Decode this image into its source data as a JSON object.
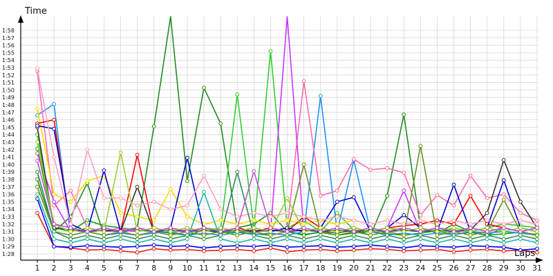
{
  "chart_data": {
    "type": "line",
    "ylabel": "Time",
    "xlabel": "Laps",
    "x": [
      1,
      2,
      3,
      4,
      5,
      6,
      7,
      8,
      9,
      10,
      11,
      12,
      13,
      14,
      15,
      16,
      17,
      18,
      19,
      20,
      21,
      22,
      23,
      24,
      25,
      26,
      27,
      28,
      29,
      30,
      31
    ],
    "y_tick_labels": [
      "1:28",
      "1:29",
      "1:30",
      "1:31",
      "1:32",
      "1:33",
      "1:34",
      "1:35",
      "1:36",
      "1:37",
      "1:38",
      "1:39",
      "1:40",
      "1:41",
      "1:42",
      "1:43",
      "1:44",
      "1:45",
      "1:46",
      "1:47",
      "1:48",
      "1:49",
      "1:50",
      "1:51",
      "1:52",
      "1:53",
      "1:54",
      "1:55",
      "1:56",
      "1:57",
      "1:58"
    ],
    "ylim": [
      "1:27",
      "1:59"
    ],
    "grid": true,
    "legend": "none",
    "series": [
      {
        "color": "#e41a1c",
        "values": [
          "1:33.5",
          "1:29.0",
          "1:28.8",
          "1:28.5",
          "1:28.6",
          "1:28.4",
          "1:28.2",
          "1:28.7",
          "1:28.5",
          "1:28.6",
          "1:28.4",
          "1:28.5",
          "1:28.6",
          "1:28.4",
          "1:28.8",
          "1:28.3",
          "1:28.5",
          "1:28.6",
          "1:28.4",
          "1:28.5",
          "1:28.7",
          "1:28.6",
          "1:28.4",
          "1:28.5",
          "1:28.6",
          "1:28.3",
          "1:28.5",
          "1:28.6",
          "1:28.4",
          "1:28.5",
          "1:28.2"
        ]
      },
      {
        "color": "#0000ff",
        "values": [
          "1:35.4",
          "1:29.0",
          "1:28.9",
          "1:29.1",
          "1:29.0",
          "1:28.9",
          "1:29.0",
          "1:29.2",
          "1:29.0",
          "1:29.1",
          "1:28.8",
          "1:29.0",
          "1:29.1",
          "1:29.0",
          "1:29.2",
          "1:28.9",
          "1:29.0",
          "1:29.1",
          "1:28.9",
          "1:29.0",
          "1:29.2",
          "1:29.0",
          "1:28.8",
          "1:29.1",
          "1:29.0",
          "1:28.9",
          "1:29.1",
          "1:29.0",
          "1:28.9",
          "1:28.5",
          "1:28.7"
        ]
      },
      {
        "color": "#00aa00",
        "values": [
          "1:42.1",
          "1:32.0",
          "1:31.0",
          "1:32.5",
          "1:31.8",
          "1:31.5",
          "1:31.2",
          "1:31.0",
          "1:30.8",
          "1:30.5",
          "1:31.2",
          "1:30.8",
          "1:31.0",
          "1:30.7",
          "1:30.5",
          "1:31.0",
          "1:30.6",
          "1:30.9",
          "1:30.5",
          "1:30.8",
          "1:31.0",
          "1:30.7",
          "1:30.5",
          "1:30.8",
          "1:31.1",
          "1:30.6",
          "1:30.9",
          "1:30.5",
          "1:30.7",
          "1:30.9",
          "1:30.6"
        ]
      },
      {
        "color": "#228b22",
        "values": [
          "1:38.0",
          "1:31.0",
          "1:33.0",
          "1:37.5",
          "1:30.5",
          "1:30.8",
          "1:31.5",
          "1:45.1",
          "2:05.0",
          "1:37.8",
          "1:50.3",
          "1:45.5",
          "1:31.5",
          "1:32.0",
          "1:33.5",
          "1:31.0",
          "1:30.5",
          "1:31.0",
          "1:30.8",
          "1:31.2",
          "1:30.5",
          "1:35.8",
          "1:46.7",
          "1:31.5",
          "1:30.8",
          "1:32.0",
          "1:31.0",
          "1:30.5",
          "1:31.5",
          "1:31.0",
          "1:30.5"
        ]
      },
      {
        "color": "#32cd32",
        "values": [
          "1:44.0",
          "1:31.5",
          "1:31.0",
          "1:31.5",
          "1:31.0",
          "1:31.2",
          "1:31.5",
          "1:31.0",
          "1:31.2",
          "1:31.0",
          "1:31.5",
          "1:31.2",
          "1:49.4",
          "1:31.5",
          "1:55.2",
          "1:31.5",
          "1:32.5",
          "1:31.0",
          "1:33.5",
          "1:31.2",
          "1:31.0",
          "1:31.5",
          "1:31.2",
          "1:31.0",
          "1:31.5",
          "1:31.2",
          "1:31.0",
          "1:31.5",
          "1:32.0",
          "1:31.8",
          "1:31.5"
        ]
      },
      {
        "color": "#1e90ff",
        "values": [
          "1:46.6",
          "1:48.1",
          "1:30.5",
          "1:31.0",
          "1:30.5",
          "1:30.8",
          "1:30.5",
          "1:30.8",
          "1:31.0",
          "1:30.5",
          "1:30.8",
          "1:30.5",
          "1:30.9",
          "1:30.6",
          "1:30.8",
          "1:30.5",
          "1:31.0",
          "1:49.2",
          "1:31.0",
          "1:40.6",
          "1:31.0",
          "1:30.5",
          "1:30.8",
          "1:30.5",
          "1:30.8",
          "1:30.6",
          "1:31.0",
          "1:30.8",
          "1:31.0",
          "1:30.8",
          "1:30.5"
        ]
      },
      {
        "color": "#ff69b4",
        "values": [
          "1:52.5",
          "1:34.5",
          "1:36.5",
          "1:31.5",
          "1:31.0",
          "1:31.5",
          "1:31.0",
          "1:31.5",
          "1:31.0",
          "1:31.5",
          "1:31.0",
          "1:31.5",
          "1:31.0",
          "1:31.5",
          "1:31.0",
          "1:31.5",
          "1:51.2",
          "1:35.8",
          "1:36.5",
          "1:40.7",
          "1:39.3",
          "1:39.5",
          "1:38.9",
          "1:33.2",
          "1:35.9",
          "1:34.5",
          "1:38.5",
          "1:35.5",
          "1:36.0",
          "1:33.5",
          "1:32.5"
        ]
      },
      {
        "color": "#cc33ff",
        "values": [
          "1:41.5",
          "1:35.0",
          "1:31.0",
          "1:31.5",
          "1:31.0",
          "1:31.2",
          "1:31.0",
          "1:31.5",
          "1:31.0",
          "1:31.2",
          "1:31.0",
          "1:31.5",
          "1:31.0",
          "1:31.2",
          "1:31.0",
          "2:05.0",
          "1:31.0",
          "1:31.5",
          "1:31.0",
          "1:31.5",
          "1:31.0",
          "1:31.5",
          "1:36.5",
          "1:31.0",
          "1:31.5",
          "1:31.0",
          "1:31.5",
          "1:31.0",
          "1:31.5",
          "1:31.0",
          "1:31.5"
        ]
      },
      {
        "color": "#ffd700",
        "values": [
          "1:47.5",
          "1:36.0",
          "1:35.0",
          "1:37.8",
          "1:38.5",
          "1:33.5",
          "1:33.0",
          "1:32.5",
          "1:36.7",
          "1:33.0",
          "1:32.0",
          "1:32.5",
          "1:32.0",
          "1:32.5",
          "1:32.0",
          "1:32.5",
          "1:32.0",
          "1:32.5",
          "1:32.0",
          "1:32.5",
          "1:32.0",
          "1:32.5",
          "1:32.0",
          "1:32.5",
          "1:32.0",
          "1:32.5",
          "1:32.0",
          "1:32.5",
          "1:32.0",
          "1:32.5",
          "1:32.0"
        ]
      },
      {
        "color": "#ff0000",
        "values": [
          "1:45.5",
          "1:46.0",
          "1:31.5",
          "1:31.0",
          "1:31.5",
          "1:31.0",
          "1:41.3",
          "1:31.0",
          "1:31.5",
          "1:31.0",
          "1:31.5",
          "1:31.0",
          "1:31.5",
          "1:31.0",
          "1:31.5",
          "1:31.0",
          "1:33.0",
          "1:31.5",
          "1:31.0",
          "1:31.5",
          "1:31.0",
          "1:31.5",
          "1:31.8",
          "1:32.0",
          "1:32.5",
          "1:32.0",
          "1:35.8",
          "1:32.0",
          "1:31.5",
          "1:31.0",
          "1:31.5"
        ]
      },
      {
        "color": "#333333",
        "values": [
          "1:45.0",
          "1:31.5",
          "1:31.2",
          "1:31.0",
          "1:31.2",
          "1:31.0",
          "1:37.0",
          "1:31.0",
          "1:31.2",
          "1:31.0",
          "1:31.2",
          "1:31.0",
          "1:31.2",
          "1:31.0",
          "1:31.2",
          "1:31.0",
          "1:31.2",
          "1:31.0",
          "1:31.2",
          "1:31.0",
          "1:31.2",
          "1:31.0",
          "1:31.2",
          "1:31.0",
          "1:31.2",
          "1:31.0",
          "1:31.2",
          "1:33.5",
          "1:40.6",
          "1:35.0",
          "1:31.5"
        ]
      },
      {
        "color": "#0000cc",
        "values": [
          "1:45.2",
          "1:44.8",
          "1:32.0",
          "1:31.0",
          "1:39.2",
          "1:31.0",
          "1:31.5",
          "1:31.0",
          "1:31.5",
          "1:40.9",
          "1:31.0",
          "1:31.5",
          "1:31.0",
          "1:31.5",
          "1:31.0",
          "1:31.5",
          "1:31.0",
          "1:31.5",
          "1:35.0",
          "1:35.6",
          "1:31.0",
          "1:31.5",
          "1:33.2",
          "1:31.5",
          "1:31.0",
          "1:37.3",
          "1:31.0",
          "1:31.5",
          "1:37.9",
          "1:31.5",
          "1:31.0"
        ]
      },
      {
        "color": "#ff9ec8",
        "values": [
          "1:52.9",
          "1:41.0",
          "1:32.0",
          "1:42.0",
          "1:35.5",
          "1:35.5",
          "1:34.5",
          "1:35.0",
          "1:34.0",
          "1:34.5",
          "1:38.5",
          "1:34.0",
          "1:33.0",
          "1:33.5",
          "1:33.0",
          "1:33.5",
          "1:33.0",
          "1:32.5",
          "1:33.0",
          "1:32.5",
          "1:32.0",
          "1:32.5",
          "1:32.0",
          "1:32.5",
          "1:32.0",
          "1:32.5",
          "1:32.0",
          "1:32.5",
          "1:32.0",
          "1:32.5",
          "1:32.0"
        ]
      },
      {
        "color": "#6b8e23",
        "values": [
          "1:37.0",
          "1:31.0",
          "1:30.5",
          "1:31.0",
          "1:30.5",
          "1:31.0",
          "1:30.5",
          "1:31.0",
          "1:30.5",
          "1:31.0",
          "1:30.5",
          "1:31.0",
          "1:30.5",
          "1:31.0",
          "1:30.5",
          "1:31.0",
          "1:40.0",
          "1:31.0",
          "1:30.5",
          "1:31.0",
          "1:30.5",
          "1:31.0",
          "1:30.5",
          "1:42.5",
          "1:30.5",
          "1:31.0",
          "1:30.5",
          "1:31.0",
          "1:35.3",
          "1:31.0",
          "1:30.5"
        ]
      },
      {
        "color": "#20b2aa",
        "values": [
          "1:36.0",
          "1:30.0",
          "1:29.5",
          "1:30.0",
          "1:29.5",
          "1:30.0",
          "1:29.5",
          "1:30.0",
          "1:29.5",
          "1:30.0",
          "1:36.3",
          "1:30.0",
          "1:29.5",
          "1:30.0",
          "1:29.5",
          "1:30.0",
          "1:29.5",
          "1:30.0",
          "1:29.5",
          "1:30.0",
          "1:29.5",
          "1:30.0",
          "1:29.5",
          "1:30.0",
          "1:29.5",
          "1:30.0",
          "1:29.5",
          "1:30.0",
          "1:29.5",
          "1:30.0",
          "1:29.5"
        ]
      },
      {
        "color": "#2e8b57",
        "values": [
          "1:39.0",
          "1:31.0",
          "1:30.0",
          "1:30.5",
          "1:30.0",
          "1:30.5",
          "1:30.0",
          "1:30.5",
          "1:30.0",
          "1:30.5",
          "1:30.0",
          "1:30.5",
          "1:39.0",
          "1:30.5",
          "1:30.0",
          "1:30.5",
          "1:30.0",
          "1:30.5",
          "1:30.0",
          "1:30.5",
          "1:30.0",
          "1:30.5",
          "1:30.0",
          "1:30.5",
          "1:30.0",
          "1:30.5",
          "1:30.0",
          "1:30.5",
          "1:30.0",
          "1:30.5",
          "1:30.0"
        ]
      },
      {
        "color": "#9acd32",
        "values": [
          "1:43.0",
          "1:32.0",
          "1:31.0",
          "1:31.5",
          "1:31.0",
          "1:41.6",
          "1:31.0",
          "1:31.5",
          "1:31.0",
          "1:31.5",
          "1:31.0",
          "1:31.5",
          "1:31.0",
          "1:31.5",
          "1:31.0",
          "1:35.5",
          "1:31.0",
          "1:31.5",
          "1:31.0",
          "1:31.5",
          "1:31.0",
          "1:31.5",
          "1:31.0",
          "1:31.5",
          "1:31.0",
          "1:31.5",
          "1:31.0",
          "1:31.5",
          "1:31.0",
          "1:31.5",
          "1:31.0"
        ]
      },
      {
        "color": "#ba55d3",
        "values": [
          "1:40.5",
          "1:32.0",
          "1:31.5",
          "1:31.0",
          "1:31.5",
          "1:31.0",
          "1:31.5",
          "1:31.0",
          "1:31.5",
          "1:31.0",
          "1:31.5",
          "1:31.0",
          "1:31.5",
          "1:39.1",
          "1:31.5",
          "1:31.0",
          "1:31.5",
          "1:31.0",
          "1:31.5",
          "1:31.0",
          "1:31.5",
          "1:31.0",
          "1:31.5",
          "1:31.0",
          "1:31.5",
          "1:31.0",
          "1:31.5",
          "1:31.0",
          "1:31.5",
          "1:31.0",
          "1:31.5"
        ]
      }
    ]
  }
}
